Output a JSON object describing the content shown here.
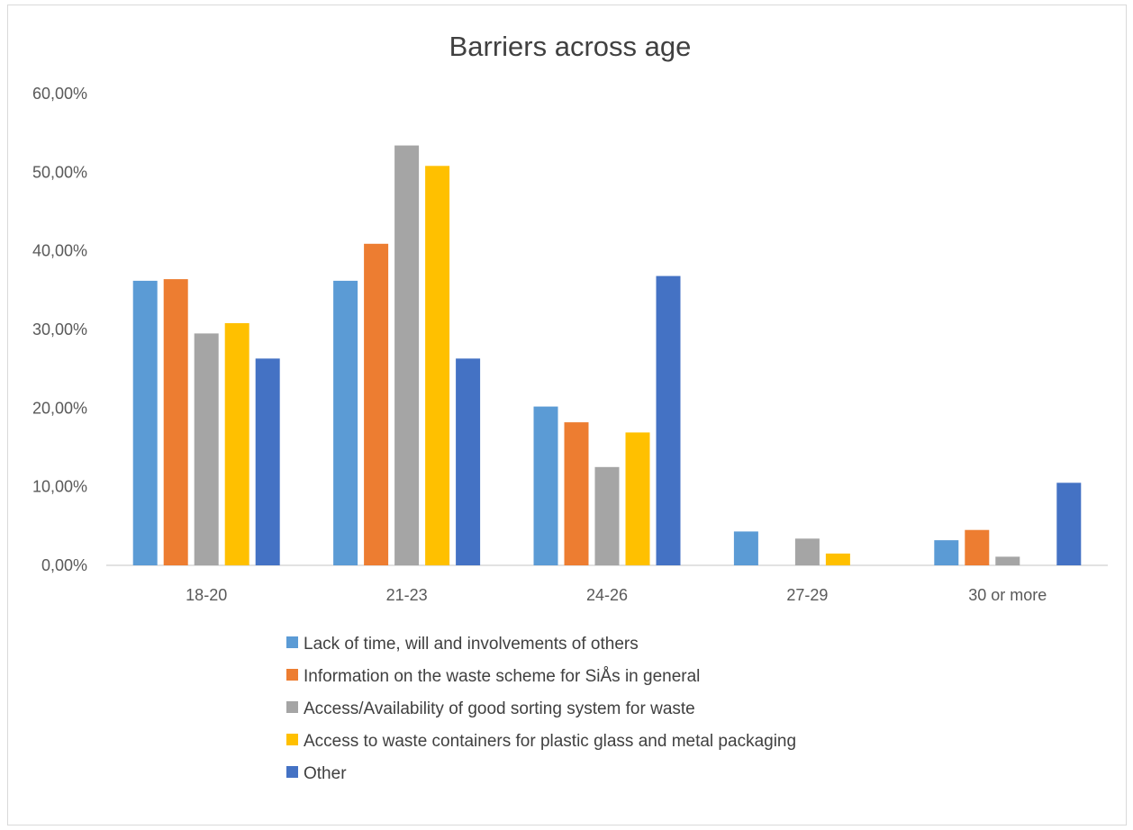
{
  "chart_data": {
    "type": "bar",
    "title": "Barriers across age",
    "xlabel": "",
    "ylabel": "",
    "categories": [
      "18-20",
      "21-23",
      "24-26",
      "27-29",
      "30 or more"
    ],
    "ylim": [
      0,
      0.6
    ],
    "y_ticks": [
      0,
      0.1,
      0.2,
      0.3,
      0.4,
      0.5,
      0.6
    ],
    "y_tick_labels": [
      "0,00%",
      "10,00%",
      "20,00%",
      "30,00%",
      "40,00%",
      "50,00%",
      "60,00%"
    ],
    "grid": false,
    "legend_position": "bottom",
    "series": [
      {
        "name": "Lack of time, will and involvements of others",
        "color": "#5b9bd5",
        "values": [
          0.362,
          0.362,
          0.202,
          0.043,
          0.032
        ]
      },
      {
        "name": "Information on the waste scheme for SiÅs in general",
        "color": "#ed7d31",
        "values": [
          0.364,
          0.409,
          0.182,
          0.0,
          0.045
        ]
      },
      {
        "name": "Access/Availability of good sorting system for waste",
        "color": "#a5a5a5",
        "values": [
          0.295,
          0.534,
          0.125,
          0.034,
          0.011
        ]
      },
      {
        "name": "Access to waste containers for plastic glass and metal packaging",
        "color": "#ffc000",
        "values": [
          0.308,
          0.508,
          0.169,
          0.015,
          0.0
        ]
      },
      {
        "name": "Other",
        "color": "#4472c4",
        "values": [
          0.263,
          0.263,
          0.368,
          0.0,
          0.105
        ]
      }
    ]
  }
}
